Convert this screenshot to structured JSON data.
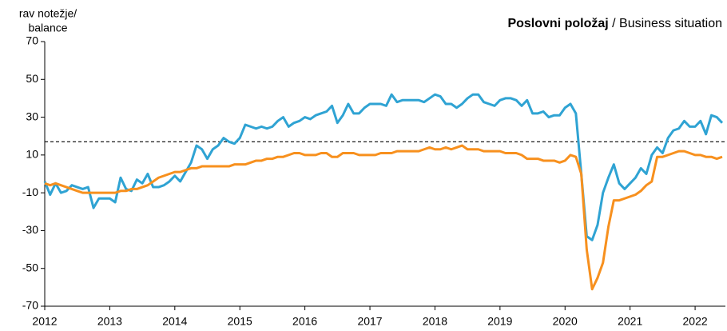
{
  "chart_data": {
    "type": "line",
    "title": "Poslovni položaj",
    "title_en": "/ Business situation",
    "ylabel": [
      "rav notežje/",
      "balance"
    ],
    "ylim": [
      -70,
      70
    ],
    "yticks": [
      -70,
      -50,
      -30,
      -10,
      10,
      30,
      50,
      70
    ],
    "reference_line": 17,
    "categories": [
      "2012",
      null,
      null,
      null,
      null,
      null,
      null,
      null,
      null,
      null,
      null,
      null,
      "2013",
      null,
      null,
      null,
      null,
      null,
      null,
      null,
      null,
      null,
      null,
      null,
      "2014",
      null,
      null,
      null,
      null,
      null,
      null,
      null,
      null,
      null,
      null,
      null,
      "2015",
      null,
      null,
      null,
      null,
      null,
      null,
      null,
      null,
      null,
      null,
      null,
      "2016",
      null,
      null,
      null,
      null,
      null,
      null,
      null,
      null,
      null,
      null,
      null,
      "2017",
      null,
      null,
      null,
      null,
      null,
      null,
      null,
      null,
      null,
      null,
      null,
      "2018",
      null,
      null,
      null,
      null,
      null,
      null,
      null,
      null,
      null,
      null,
      null,
      "2019",
      null,
      null,
      null,
      null,
      null,
      null,
      null,
      null,
      null,
      null,
      null,
      "2020",
      null,
      null,
      null,
      null,
      null,
      null,
      null,
      null,
      null,
      null,
      null,
      "2021",
      null,
      null,
      null,
      null,
      null,
      null,
      null,
      null,
      null,
      null,
      null,
      "2022",
      null,
      null,
      null,
      null,
      null
    ],
    "series": [
      {
        "color": "#2fa3d3",
        "values": [
          -4,
          -11,
          -5,
          -10,
          -9,
          -6,
          -7,
          -8,
          -7,
          -18,
          -13,
          -13,
          -13,
          -15,
          -2,
          -8,
          -9,
          -3,
          -5,
          0,
          -7,
          -7,
          -6,
          -4,
          -1,
          -4,
          1,
          6,
          15,
          13,
          8,
          13,
          15,
          19,
          17,
          16,
          19,
          26,
          25,
          24,
          25,
          24,
          25,
          28,
          30,
          25,
          27,
          28,
          30,
          29,
          31,
          32,
          33,
          36,
          27,
          31,
          37,
          32,
          32,
          35,
          37,
          37,
          37,
          36,
          42,
          38,
          39,
          39,
          39,
          39,
          38,
          40,
          42,
          41,
          37,
          37,
          35,
          37,
          40,
          42,
          42,
          38,
          37,
          36,
          39,
          40,
          40,
          39,
          36,
          39,
          32,
          32,
          33,
          30,
          31,
          31,
          35,
          37,
          32,
          0,
          -33,
          -35,
          -27,
          -10,
          -2,
          5,
          -5,
          -8,
          -5,
          -2,
          3,
          0,
          10,
          14,
          11,
          19,
          23,
          24,
          28,
          25,
          25,
          28,
          21,
          31,
          30,
          27
        ]
      },
      {
        "color": "#f7901e",
        "values": [
          -5,
          -6,
          -5,
          -6,
          -7,
          -8,
          -9,
          -10,
          -10,
          -10,
          -10,
          -10,
          -10,
          -10,
          -9,
          -9,
          -8,
          -8,
          -7,
          -6,
          -4,
          -2,
          -1,
          0,
          1,
          1,
          2,
          3,
          3,
          4,
          4,
          4,
          4,
          4,
          4,
          5,
          5,
          5,
          6,
          7,
          7,
          8,
          8,
          9,
          9,
          10,
          11,
          11,
          10,
          10,
          10,
          11,
          11,
          9,
          9,
          11,
          11,
          11,
          10,
          10,
          10,
          10,
          11,
          11,
          11,
          12,
          12,
          12,
          12,
          12,
          13,
          14,
          13,
          13,
          14,
          13,
          14,
          15,
          13,
          13,
          13,
          12,
          12,
          12,
          12,
          11,
          11,
          11,
          10,
          8,
          8,
          8,
          7,
          7,
          7,
          6,
          7,
          10,
          9,
          0,
          -40,
          -61,
          -55,
          -47,
          -28,
          -14,
          -14,
          -13,
          -12,
          -11,
          -9,
          -6,
          -4,
          9,
          9,
          10,
          11,
          12,
          12,
          11,
          10,
          10,
          9,
          9,
          8,
          9
        ]
      }
    ]
  }
}
